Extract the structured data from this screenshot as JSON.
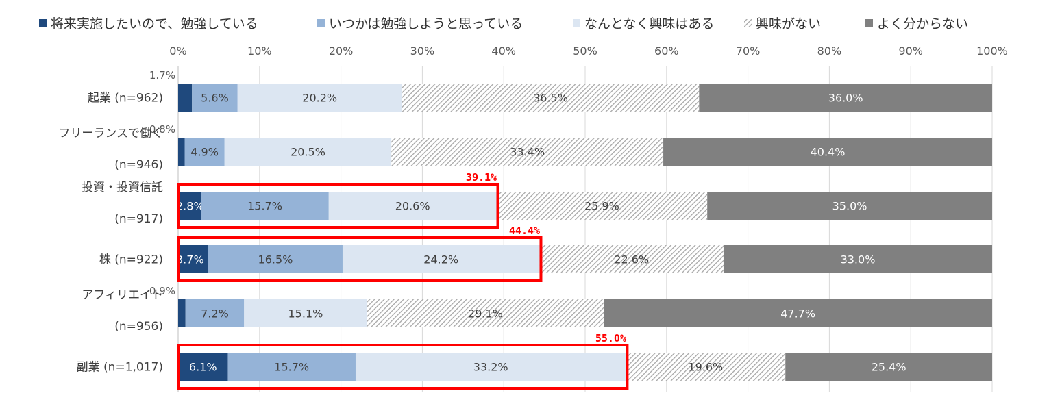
{
  "chart_data": {
    "type": "bar",
    "orientation": "horizontal",
    "stacked": "percent",
    "xlim": [
      0,
      100
    ],
    "x_ticks": [
      "0%",
      "10%",
      "20%",
      "30%",
      "40%",
      "50%",
      "60%",
      "70%",
      "80%",
      "90%",
      "100%"
    ],
    "legend_position": "top",
    "grid": true,
    "categories": [
      [
        "起業 (n=962)"
      ],
      [
        "フリーランスで働く",
        "(n=946)"
      ],
      [
        "投資・投資信託",
        "(n=917)"
      ],
      [
        "株 (n=922)"
      ],
      [
        "アフィリエイト",
        "(n=956)"
      ],
      [
        "副業 (n=1,017)"
      ]
    ],
    "series": [
      {
        "name": "将来実施したいので、勉強している",
        "color": "#1f497d",
        "pattern": "solid",
        "values": [
          1.7,
          0.8,
          2.8,
          3.7,
          0.9,
          6.1
        ],
        "labels": [
          "1.7%",
          "0.8%",
          "2.8%",
          "3.7%",
          "0.9%",
          "6.1%"
        ]
      },
      {
        "name": "いつかは勉強しようと思っている",
        "color": "#95b3d7",
        "pattern": "solid",
        "values": [
          5.6,
          4.9,
          15.7,
          16.5,
          7.2,
          15.7
        ],
        "labels": [
          "5.6%",
          "4.9%",
          "15.7%",
          "16.5%",
          "7.2%",
          "15.7%"
        ]
      },
      {
        "name": "なんとなく興味はある",
        "color": "#dce6f2",
        "pattern": "solid",
        "values": [
          20.2,
          20.5,
          20.6,
          24.2,
          15.1,
          33.2
        ],
        "labels": [
          "20.2%",
          "20.5%",
          "20.6%",
          "24.2%",
          "15.1%",
          "33.2%"
        ]
      },
      {
        "name": "興味がない",
        "color": "#a6a6a6",
        "pattern": "hatch",
        "values": [
          36.5,
          33.4,
          25.9,
          22.6,
          29.1,
          19.6
        ],
        "labels": [
          "36.5%",
          "33.4%",
          "25.9%",
          "22.6%",
          "29.1%",
          "19.6%"
        ]
      },
      {
        "name": "よく分からない",
        "color": "#808080",
        "pattern": "solid",
        "values": [
          36.0,
          40.4,
          35.0,
          33.0,
          47.7,
          25.4
        ],
        "labels": [
          "36.0%",
          "40.4%",
          "35.0%",
          "33.0%",
          "47.7%",
          "25.4%"
        ]
      }
    ],
    "highlights": [
      {
        "category_index": 2,
        "value": 39.1,
        "label": "39.1%",
        "color": "#ff0000"
      },
      {
        "category_index": 3,
        "value": 44.4,
        "label": "44.4%",
        "color": "#ff0000"
      },
      {
        "category_index": 5,
        "value": 55.0,
        "label": "55.0%",
        "color": "#ff0000"
      }
    ]
  }
}
